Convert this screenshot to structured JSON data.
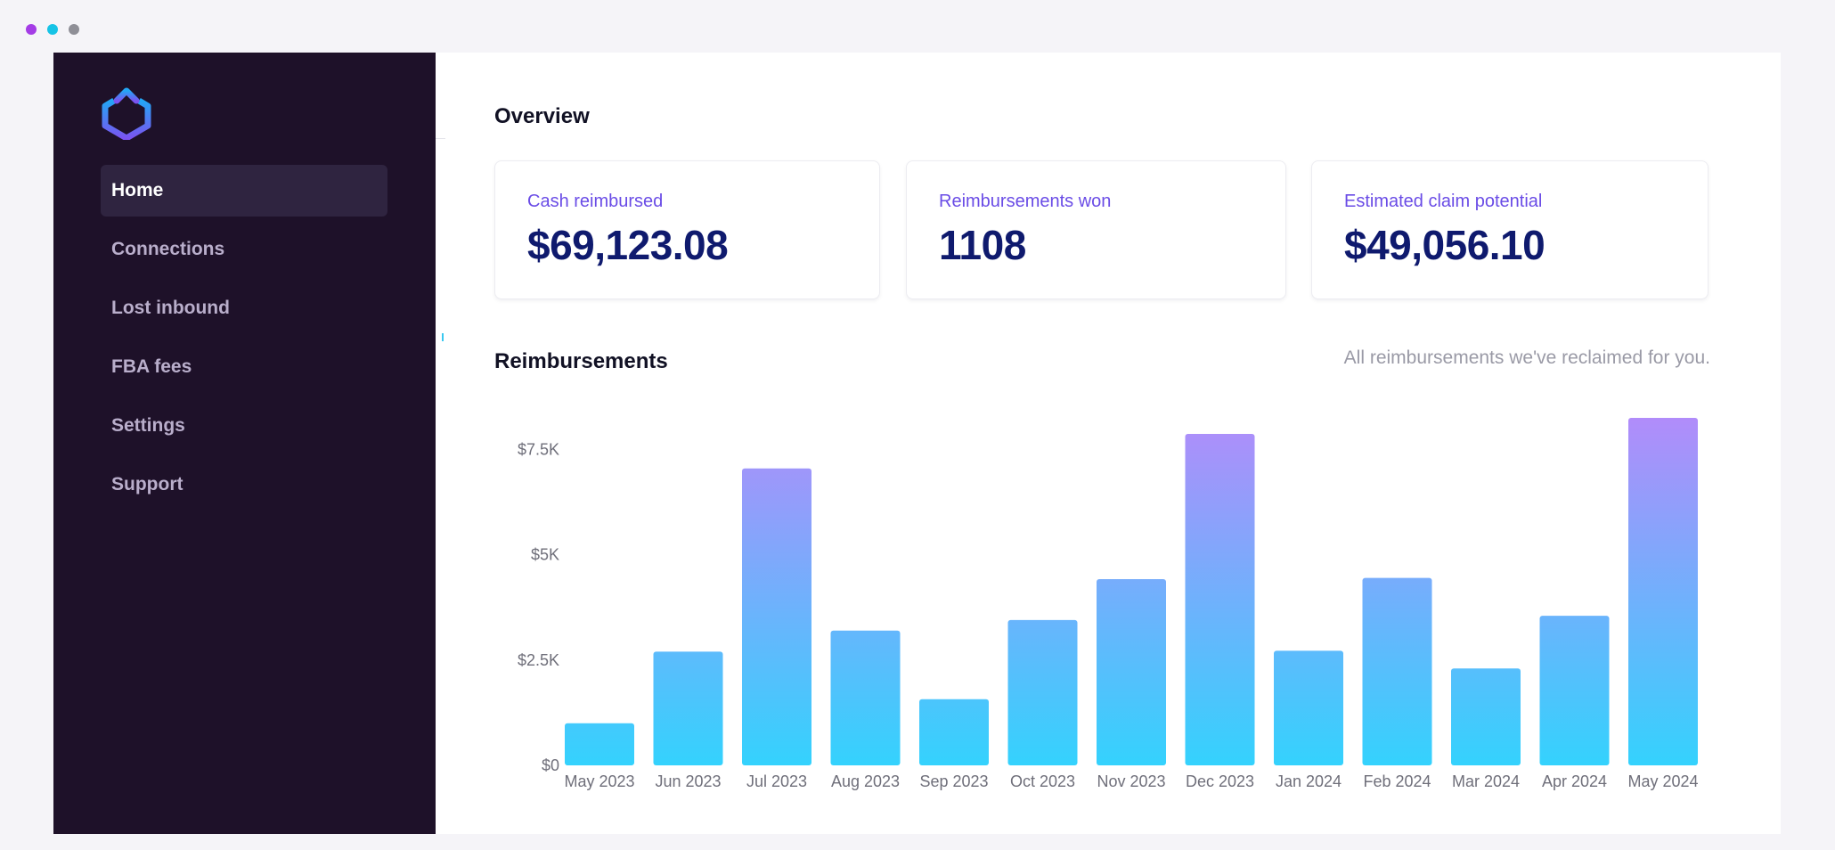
{
  "window_dots": [
    "#a43ce6",
    "#16c3e6",
    "#8f8f97"
  ],
  "sidebar": {
    "logo_icon": "upload-hexagon-logo",
    "items": [
      {
        "label": "Home",
        "active": true
      },
      {
        "label": "Connections",
        "active": false
      },
      {
        "label": "Lost inbound",
        "active": false
      },
      {
        "label": "FBA fees",
        "active": false
      },
      {
        "label": "Settings",
        "active": false
      },
      {
        "label": "Support",
        "active": false
      }
    ]
  },
  "overview": {
    "title": "Overview",
    "cards": [
      {
        "label": "Cash reimbursed",
        "value": "$69,123.08"
      },
      {
        "label": "Reimbursements won",
        "value": "1108"
      },
      {
        "label": "Estimated claim potential",
        "value": "$49,056.10"
      }
    ]
  },
  "reimbursements": {
    "title": "Reimbursements",
    "subtitle": "All reimbursements we've reclaimed for you."
  },
  "colors": {
    "sidebar_bg": "#1e1129",
    "accent_label": "#6a4ce6",
    "value_text": "#0f1a6e",
    "bar_gradient_top": "#b18cfa",
    "bar_gradient_bottom": "#34d2fd"
  },
  "chart_data": {
    "type": "bar",
    "categories": [
      "May 2023",
      "Jun 2023",
      "Jul 2023",
      "Aug 2023",
      "Sep 2023",
      "Oct 2023",
      "Nov 2023",
      "Dec 2023",
      "Jan 2024",
      "Feb 2024",
      "Mar 2024",
      "Apr 2024",
      "May 2024"
    ],
    "values": [
      1000,
      2700,
      7050,
      3200,
      1570,
      3450,
      4420,
      7870,
      2720,
      4450,
      2300,
      3550,
      8250
    ],
    "yticks": [
      0,
      2500,
      5000,
      7500
    ],
    "ytick_labels": [
      "$0",
      "$2.5K",
      "$5K",
      "$7.5K"
    ],
    "ylim": [
      0,
      8250
    ],
    "grid": false,
    "legend": "none"
  }
}
